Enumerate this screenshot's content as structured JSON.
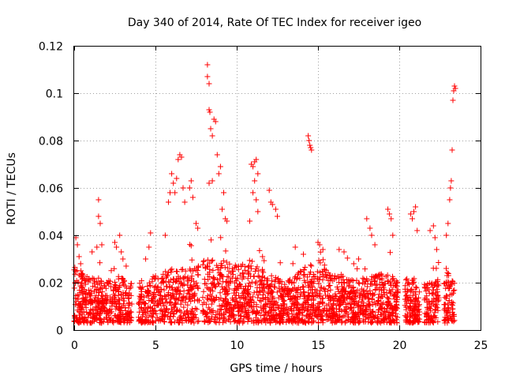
{
  "chart_data": {
    "type": "scatter",
    "title": "Day 340 of 2014, Rate Of TEC Index for receiver igeo",
    "xlabel": "GPS time / hours",
    "ylabel": "ROTI / TECUs",
    "xlim": [
      0,
      25
    ],
    "ylim": [
      0,
      0.12
    ],
    "x_ticks": [
      0,
      5,
      10,
      15,
      20,
      25
    ],
    "y_ticks": [
      0,
      0.02,
      0.04,
      0.06,
      0.08,
      0.1,
      0.12
    ],
    "x_tick_labels": [
      "0",
      "5",
      "10",
      "15",
      "20",
      "25"
    ],
    "y_tick_labels": [
      "0",
      "0.02",
      "0.04",
      "0.06",
      "0.08",
      "0.1",
      "0.12"
    ],
    "grid": true,
    "marker": "+",
    "color": "#ff0000",
    "series": [
      {
        "name": "ROTI",
        "points": [
          [
            0.1,
            0.039
          ],
          [
            0.2,
            0.036
          ],
          [
            0.3,
            0.031
          ],
          [
            0.4,
            0.028
          ],
          [
            1.1,
            0.033
          ],
          [
            1.4,
            0.035
          ],
          [
            1.5,
            0.055
          ],
          [
            1.5,
            0.048
          ],
          [
            1.6,
            0.045
          ],
          [
            1.7,
            0.036
          ],
          [
            2.5,
            0.037
          ],
          [
            2.6,
            0.035
          ],
          [
            2.8,
            0.04
          ],
          [
            2.9,
            0.033
          ],
          [
            3.0,
            0.03
          ],
          [
            3.2,
            0.027
          ],
          [
            4.4,
            0.03
          ],
          [
            4.6,
            0.035
          ],
          [
            4.7,
            0.041
          ],
          [
            5.6,
            0.04
          ],
          [
            5.8,
            0.054
          ],
          [
            5.9,
            0.058
          ],
          [
            6.0,
            0.066
          ],
          [
            6.1,
            0.062
          ],
          [
            6.2,
            0.058
          ],
          [
            6.3,
            0.064
          ],
          [
            6.4,
            0.072
          ],
          [
            6.5,
            0.074
          ],
          [
            6.6,
            0.073
          ],
          [
            6.7,
            0.06
          ],
          [
            6.8,
            0.054
          ],
          [
            7.1,
            0.06
          ],
          [
            7.2,
            0.063
          ],
          [
            7.3,
            0.056
          ],
          [
            7.5,
            0.045
          ],
          [
            7.6,
            0.043
          ],
          [
            8.2,
            0.112
          ],
          [
            8.2,
            0.107
          ],
          [
            8.3,
            0.104
          ],
          [
            8.3,
            0.093
          ],
          [
            8.35,
            0.092
          ],
          [
            8.4,
            0.085
          ],
          [
            8.5,
            0.082
          ],
          [
            8.6,
            0.089
          ],
          [
            8.7,
            0.088
          ],
          [
            8.8,
            0.074
          ],
          [
            8.9,
            0.066
          ],
          [
            8.3,
            0.062
          ],
          [
            8.5,
            0.063
          ],
          [
            9.0,
            0.069
          ],
          [
            9.1,
            0.051
          ],
          [
            9.2,
            0.058
          ],
          [
            9.3,
            0.047
          ],
          [
            9.4,
            0.046
          ],
          [
            10.9,
            0.07
          ],
          [
            11.0,
            0.069
          ],
          [
            11.1,
            0.071
          ],
          [
            11.2,
            0.072
          ],
          [
            11.3,
            0.066
          ],
          [
            11.1,
            0.063
          ],
          [
            11.0,
            0.058
          ],
          [
            11.2,
            0.055
          ],
          [
            11.3,
            0.05
          ],
          [
            10.8,
            0.046
          ],
          [
            12.0,
            0.059
          ],
          [
            12.1,
            0.054
          ],
          [
            12.2,
            0.053
          ],
          [
            12.4,
            0.051
          ],
          [
            12.5,
            0.048
          ],
          [
            14.4,
            0.082
          ],
          [
            14.45,
            0.08
          ],
          [
            14.5,
            0.078
          ],
          [
            14.55,
            0.077
          ],
          [
            14.6,
            0.076
          ],
          [
            13.6,
            0.035
          ],
          [
            14.1,
            0.032
          ],
          [
            15.0,
            0.037
          ],
          [
            15.3,
            0.034
          ],
          [
            15.1,
            0.036
          ],
          [
            16.3,
            0.034
          ],
          [
            16.6,
            0.033
          ],
          [
            17.2,
            0.028
          ],
          [
            17.5,
            0.03
          ],
          [
            18.0,
            0.047
          ],
          [
            18.2,
            0.043
          ],
          [
            18.3,
            0.04
          ],
          [
            18.5,
            0.036
          ],
          [
            19.3,
            0.051
          ],
          [
            19.4,
            0.049
          ],
          [
            19.5,
            0.047
          ],
          [
            19.6,
            0.04
          ],
          [
            20.7,
            0.049
          ],
          [
            20.8,
            0.047
          ],
          [
            20.9,
            0.05
          ],
          [
            21.0,
            0.052
          ],
          [
            21.1,
            0.042
          ],
          [
            21.9,
            0.042
          ],
          [
            22.1,
            0.044
          ],
          [
            22.2,
            0.039
          ],
          [
            22.3,
            0.034
          ],
          [
            22.9,
            0.04
          ],
          [
            23.0,
            0.045
          ],
          [
            23.1,
            0.055
          ],
          [
            23.15,
            0.06
          ],
          [
            23.2,
            0.063
          ],
          [
            23.25,
            0.076
          ],
          [
            23.3,
            0.097
          ],
          [
            23.35,
            0.101
          ],
          [
            23.4,
            0.103
          ],
          [
            23.45,
            0.102
          ]
        ]
      }
    ],
    "dense_band": {
      "description_free": true,
      "x_start": 0,
      "x_end": 23.4,
      "y_low": 0.003,
      "y_high_profile": [
        [
          0,
          0.028
        ],
        [
          1,
          0.022
        ],
        [
          2,
          0.022
        ],
        [
          3,
          0.022
        ],
        [
          4,
          0.018
        ],
        [
          5,
          0.024
        ],
        [
          6,
          0.026
        ],
        [
          7,
          0.026
        ],
        [
          8,
          0.03
        ],
        [
          9,
          0.03
        ],
        [
          10,
          0.028
        ],
        [
          11,
          0.03
        ],
        [
          12,
          0.024
        ],
        [
          13,
          0.02
        ],
        [
          14,
          0.026
        ],
        [
          15,
          0.03
        ],
        [
          16,
          0.024
        ],
        [
          17,
          0.022
        ],
        [
          18,
          0.022
        ],
        [
          19,
          0.024
        ],
        [
          20,
          0.022
        ],
        [
          21,
          0.022
        ],
        [
          22,
          0.02
        ],
        [
          23,
          0.024
        ],
        [
          23.4,
          0.024
        ]
      ],
      "gaps": [
        [
          3.55,
          3.95
        ],
        [
          7.7,
          7.9
        ],
        [
          19.95,
          20.35
        ],
        [
          21.25,
          21.55
        ],
        [
          22.45,
          22.75
        ]
      ],
      "count": 2600,
      "seed": 340
    }
  }
}
